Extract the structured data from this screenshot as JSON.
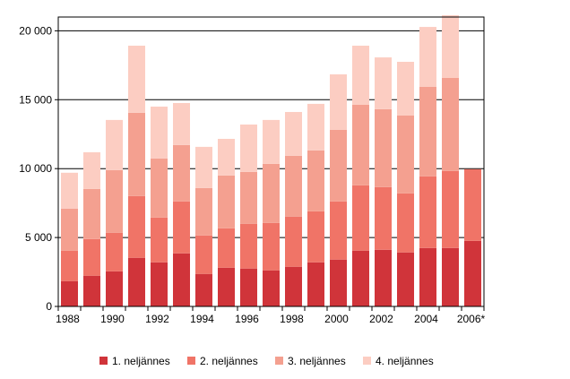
{
  "chart_data": {
    "type": "bar",
    "stacked": true,
    "title": "",
    "xlabel": "",
    "ylabel": "",
    "ylim": [
      0,
      21000
    ],
    "yticks": [
      0,
      5000,
      10000,
      15000,
      20000
    ],
    "ytick_labels": [
      "0",
      "5 000",
      "10 000",
      "15 000",
      "20 000"
    ],
    "grid": true,
    "legend_position": "bottom",
    "categories": [
      "1988",
      "1989",
      "1990",
      "1991",
      "1992",
      "1993",
      "1994",
      "1995",
      "1996",
      "1997",
      "1998",
      "1999",
      "2000",
      "2001",
      "2002",
      "2003",
      "2004",
      "2005",
      "2006*"
    ],
    "xtick_labels": [
      "1988",
      "",
      "1990",
      "",
      "1992",
      "",
      "1994",
      "",
      "1996",
      "",
      "1998",
      "",
      "2000",
      "",
      "2002",
      "",
      "2004",
      "",
      "2006*"
    ],
    "series": [
      {
        "name": "1. neljännes",
        "color": "#d0343a",
        "values": [
          1840,
          2230,
          2550,
          3530,
          3200,
          3850,
          2360,
          2810,
          2750,
          2620,
          2880,
          3200,
          3400,
          4050,
          4110,
          3920,
          4240,
          4240,
          4760
        ]
      },
      {
        "name": "2. neljännes",
        "color": "#f07467",
        "values": [
          2210,
          2660,
          2800,
          4480,
          3250,
          3770,
          2790,
          2860,
          3250,
          3440,
          3640,
          3700,
          4220,
          4740,
          4550,
          4280,
          5200,
          5590,
          5200
        ]
      },
      {
        "name": "3. neljännes",
        "color": "#f4a090",
        "values": [
          3050,
          3640,
          4540,
          6040,
          4290,
          4090,
          3440,
          3830,
          3760,
          4290,
          4410,
          4420,
          5190,
          5840,
          5650,
          5650,
          6490,
          6750,
          null
        ]
      },
      {
        "name": "4. neljännes",
        "color": "#fccdc2",
        "values": [
          2600,
          2660,
          3640,
          4870,
          3760,
          3050,
          2990,
          2660,
          3440,
          3180,
          3180,
          3380,
          4030,
          4290,
          3760,
          3900,
          4350,
          4550,
          null
        ]
      }
    ]
  }
}
